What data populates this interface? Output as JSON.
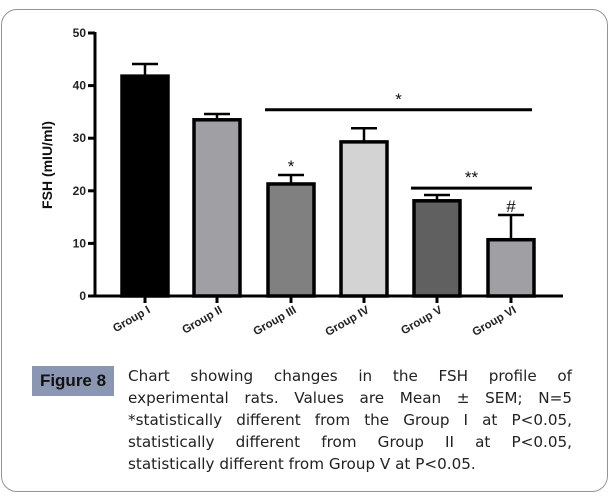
{
  "chart_data": {
    "type": "bar",
    "title": "",
    "xlabel": "",
    "ylabel": "FSH (mIU/ml)",
    "ylim": [
      0,
      50
    ],
    "yticks": [
      0,
      10,
      20,
      30,
      40,
      50
    ],
    "ytick_labels": [
      "0",
      "10",
      "20",
      "30",
      "40",
      "50"
    ],
    "grid": false,
    "legend": "none",
    "categories": [
      "Group I",
      "Group II",
      "Group III",
      "Group IV",
      "Group V",
      "Group VI"
    ],
    "values": [
      41.8,
      33.5,
      21.3,
      29.3,
      18.1,
      10.7
    ],
    "errors": [
      2.3,
      1.1,
      1.7,
      2.6,
      1.1,
      4.7
    ],
    "colors": [
      "#000000",
      "#a0a0a4",
      "#808080",
      "#d3d3d3",
      "#606060",
      "#a0a0a4"
    ],
    "annotations": [
      {
        "text": "*",
        "type": "bar-label",
        "category": "Group III"
      },
      {
        "text": "#",
        "type": "bar-label",
        "category": "Group VI"
      },
      {
        "text": "*",
        "type": "bracket",
        "from": "Group III",
        "to": "Group VI",
        "y": 35.4
      },
      {
        "text": "**",
        "type": "bracket",
        "from": "Group V",
        "to": "Group VI",
        "y": 20.5
      }
    ]
  },
  "figure": {
    "label": "Figure 8",
    "caption_lines": [
      "Chart showing changes in the FSH profile of",
      "experimental rats. Values are Mean ± SEM; N=5",
      "*statistically different from the Group I at P<0.05,",
      "statistically different from Group II at P<0.05,",
      "statistically different from Group V at P<0.05."
    ]
  },
  "colors": {
    "frame_border": "#8e95a2",
    "label_bg": "#8b96b2"
  }
}
